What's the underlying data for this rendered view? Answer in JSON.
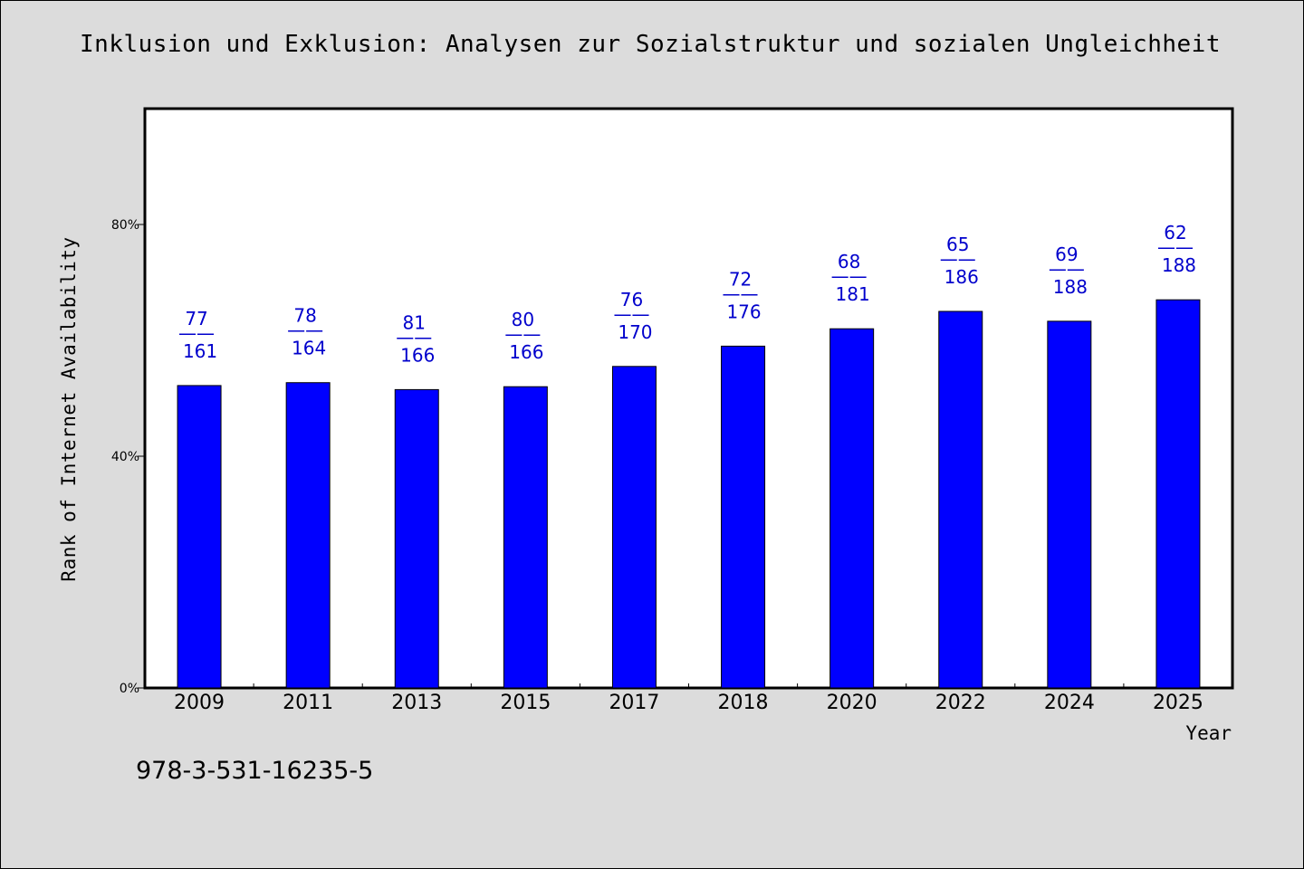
{
  "chart_data": {
    "type": "bar",
    "title": "Inklusion und Exklusion: Analysen zur Sozialstruktur und sozialen Ungleichheit",
    "xlabel": "Year",
    "ylabel": "Rank of Internet Availability",
    "ylim": [
      0,
      100
    ],
    "yticks": [
      "0%",
      "40%",
      "80%"
    ],
    "ytick_values": [
      0,
      40,
      80
    ],
    "categories": [
      "2009",
      "2011",
      "2013",
      "2015",
      "2017",
      "2018",
      "2020",
      "2022",
      "2024",
      "2025"
    ],
    "values": [
      52.2,
      52.7,
      51.5,
      52.0,
      55.5,
      59.0,
      62.0,
      65.0,
      63.3,
      67.0
    ],
    "data_labels": [
      {
        "top": "77",
        "sep": "——",
        "bottom": "161"
      },
      {
        "top": "78",
        "sep": "——",
        "bottom": "164"
      },
      {
        "top": "81",
        "sep": "——",
        "bottom": "166"
      },
      {
        "top": "80",
        "sep": "——",
        "bottom": "166"
      },
      {
        "top": "76",
        "sep": "——",
        "bottom": "170"
      },
      {
        "top": "72",
        "sep": "——",
        "bottom": "176"
      },
      {
        "top": "68",
        "sep": "——",
        "bottom": "181"
      },
      {
        "top": "65",
        "sep": "——",
        "bottom": "186"
      },
      {
        "top": "69",
        "sep": "——",
        "bottom": "188"
      },
      {
        "top": "62",
        "sep": "——",
        "bottom": "188"
      }
    ],
    "grid": false,
    "legend": "none",
    "bar_color": "#0000ff",
    "label_color": "#0000cc",
    "background_color": "#dcdcdc",
    "plot_background_color": "#ffffff"
  },
  "footnote": "978-3-531-16235-5"
}
